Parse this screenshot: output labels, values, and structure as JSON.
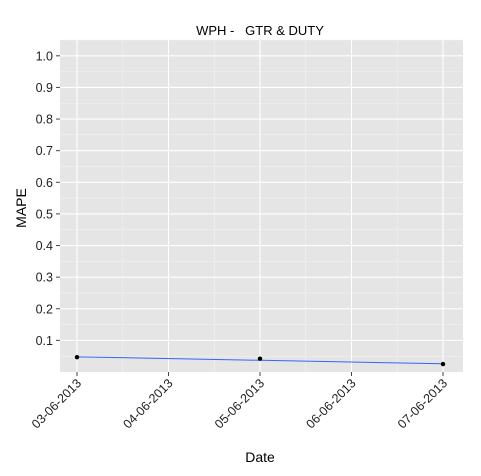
{
  "chart_data": {
    "type": "line",
    "title": "WPH -   GTR & DUTY",
    "xlabel": "Date",
    "ylabel": "MAPE",
    "x_ticks": [
      "03-06-2013",
      "04-06-2013",
      "05-06-2013",
      "06-06-2013",
      "07-06-2013"
    ],
    "y_ticks": [
      "0.1",
      "0.2",
      "0.3",
      "0.4",
      "0.5",
      "0.6",
      "0.7",
      "0.8",
      "0.9",
      "1.0"
    ],
    "xlim": [
      "2013-06-03",
      "2013-06-07"
    ],
    "ylim": [
      0.0,
      1.05
    ],
    "grid": true,
    "series": [
      {
        "x": [
          "2013-06-03",
          "2013-06-05",
          "2013-06-07"
        ],
        "y": [
          0.047,
          0.042,
          0.025
        ],
        "point_color": "#000000"
      }
    ],
    "smooth_line": {
      "x": [
        "2013-06-03",
        "2013-06-07"
      ],
      "y": [
        0.048,
        0.026
      ],
      "color": "#3366FF"
    },
    "colors": {
      "panel_background": "#E5E5E5",
      "grid_major": "#FFFFFF",
      "grid_minor": "#F2F2F2"
    }
  }
}
